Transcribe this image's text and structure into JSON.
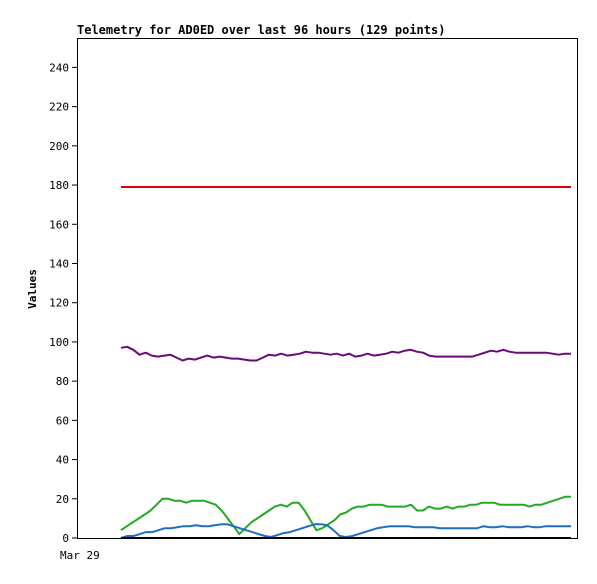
{
  "chart_data": {
    "type": "line",
    "title": "Telemetry for AD0ED over last 96 hours (129 points)",
    "xlabel": "",
    "ylabel": "Values",
    "ylim": [
      0,
      255
    ],
    "yticks": [
      0,
      20,
      40,
      60,
      80,
      100,
      120,
      140,
      160,
      180,
      200,
      220,
      240
    ],
    "xtick_labels": [
      "Mar 29"
    ],
    "grid": false,
    "legend": "none",
    "series": [
      {
        "color": "#dd0000",
        "values": [
          179,
          179,
          179,
          179,
          179,
          179,
          179,
          179,
          179,
          179,
          179,
          179,
          179
        ]
      },
      {
        "color": "#6a0a7a",
        "values": [
          97,
          97.5,
          96,
          93.5,
          94.5,
          93,
          92.5,
          93,
          93.5,
          92,
          90.5,
          91.5,
          91,
          92,
          93,
          92,
          92.5,
          92,
          91.5,
          91.5,
          91,
          90.5,
          90.5,
          92,
          93.5,
          93,
          94,
          93,
          93.5,
          94,
          95,
          94.5,
          94.5,
          94,
          93.5,
          94,
          93,
          94,
          92.5,
          93,
          94,
          93,
          93.5,
          94,
          95,
          94.5,
          95.5,
          96,
          95,
          94.5,
          93,
          92.5,
          92.5,
          92.5,
          92.5,
          92.5,
          92.5,
          92.5,
          93.5,
          94.5,
          95.5,
          95,
          96,
          95,
          94.5,
          94.5,
          94.5,
          94.5,
          94.5,
          94.5,
          94,
          93.5,
          94,
          94
        ]
      },
      {
        "color": "#22aa22",
        "values": [
          4,
          6,
          8,
          10,
          12,
          14,
          17,
          20,
          20,
          19,
          19,
          18,
          19,
          19,
          19,
          18,
          17,
          14,
          10,
          6,
          2,
          5,
          8,
          10,
          12,
          14,
          16,
          17,
          16,
          18,
          18,
          14,
          9,
          4,
          5,
          7,
          9,
          12,
          13,
          15,
          16,
          16,
          17,
          17,
          17,
          16,
          16,
          16,
          16,
          17,
          14,
          14,
          16,
          15,
          15,
          16,
          15,
          16,
          16,
          17,
          17,
          18,
          18,
          18,
          17,
          17,
          17,
          17,
          17,
          16,
          17,
          17,
          18,
          19,
          20,
          21,
          21
        ]
      },
      {
        "color": "#1f6fc0",
        "values": [
          0,
          1,
          1,
          2,
          3,
          3,
          4,
          5,
          5,
          5.5,
          6,
          6,
          6.5,
          6,
          6,
          6.5,
          7,
          7,
          6,
          5,
          4,
          3,
          2,
          1,
          0.5,
          1.5,
          2.5,
          3,
          4,
          5,
          6,
          7,
          7,
          6.5,
          4,
          1,
          0.5,
          1,
          2,
          3,
          4,
          5,
          5.5,
          6,
          6,
          6,
          6,
          5.5,
          5.5,
          5.5,
          5.5,
          5,
          5,
          5,
          5,
          5,
          5,
          5,
          6,
          5.5,
          5.5,
          6,
          5.5,
          5.5,
          5.5,
          6,
          5.5,
          5.5,
          6,
          6,
          6,
          6,
          6
        ]
      },
      {
        "color": "#000000",
        "values": [
          0,
          0,
          0,
          0,
          0,
          0,
          0,
          0,
          0,
          0,
          0,
          0,
          0
        ]
      }
    ]
  }
}
